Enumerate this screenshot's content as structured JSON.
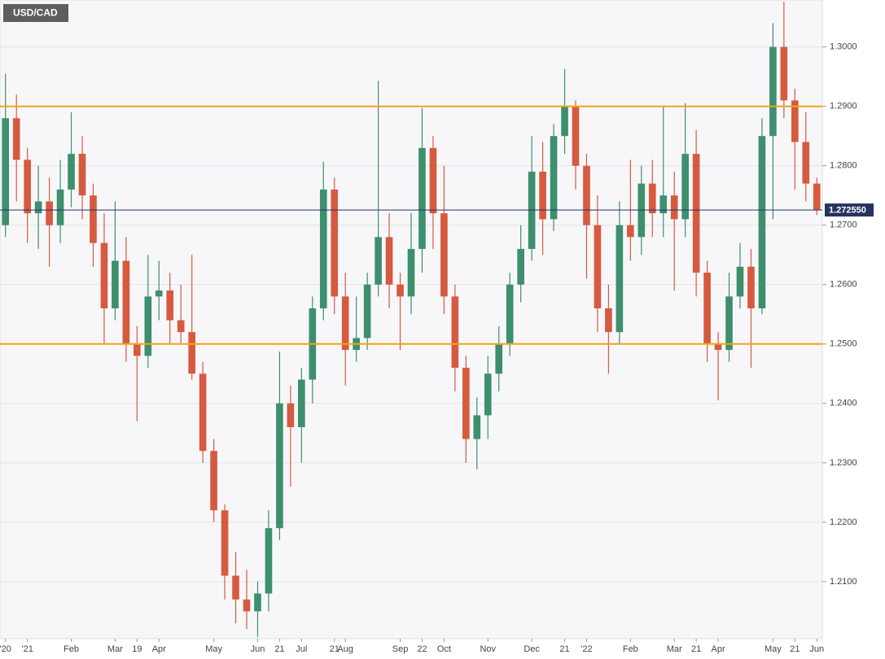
{
  "chart_data": {
    "type": "candlestick",
    "title": "USD/CAD",
    "categories": [
      "'20",
      null,
      "'21",
      null,
      null,
      null,
      "Feb",
      null,
      null,
      null,
      "Mar",
      null,
      "19",
      null,
      "Apr",
      null,
      null,
      null,
      null,
      "May",
      null,
      null,
      null,
      "Jun",
      null,
      "21",
      null,
      "Jul",
      null,
      null,
      "21",
      "Aug",
      null,
      null,
      null,
      null,
      "Sep",
      null,
      "22",
      null,
      "Oct",
      null,
      null,
      null,
      "Nov",
      null,
      null,
      null,
      "Dec",
      null,
      null,
      "21",
      null,
      "'22",
      null,
      null,
      null,
      "Feb",
      null,
      null,
      null,
      "Mar",
      null,
      "21",
      null,
      "Apr",
      null,
      null,
      null,
      null,
      "May",
      null,
      "21",
      null,
      "Jun"
    ],
    "open": [
      1.27,
      1.288,
      1.281,
      1.272,
      1.274,
      1.27,
      1.276,
      1.282,
      1.275,
      1.267,
      1.256,
      1.264,
      1.25,
      1.248,
      1.258,
      1.259,
      1.254,
      1.252,
      1.245,
      1.232,
      1.222,
      1.211,
      1.207,
      1.205,
      1.208,
      1.219,
      1.24,
      1.236,
      1.244,
      1.256,
      1.276,
      1.258,
      1.249,
      1.251,
      1.26,
      1.268,
      1.26,
      1.258,
      1.266,
      1.283,
      1.272,
      1.258,
      1.246,
      1.234,
      1.238,
      1.245,
      1.25,
      1.26,
      1.266,
      1.279,
      1.271,
      1.285,
      1.29,
      1.28,
      1.27,
      1.256,
      1.252,
      1.27,
      1.268,
      1.277,
      1.272,
      1.275,
      1.271,
      1.282,
      1.262,
      1.25,
      1.249,
      1.258,
      1.263,
      1.256,
      1.285,
      1.3,
      1.291,
      1.284,
      1.277
    ],
    "high": [
      1.2955,
      1.292,
      1.283,
      1.28,
      1.278,
      1.281,
      1.289,
      1.285,
      1.277,
      1.272,
      1.274,
      1.268,
      1.253,
      1.265,
      1.264,
      1.262,
      1.26,
      1.265,
      1.247,
      1.234,
      1.223,
      1.215,
      1.212,
      1.21,
      1.222,
      1.2487,
      1.243,
      1.246,
      1.258,
      1.2807,
      1.278,
      1.262,
      1.258,
      1.262,
      1.2943,
      1.272,
      1.262,
      1.272,
      1.2897,
      1.285,
      1.28,
      1.26,
      1.248,
      1.241,
      1.248,
      1.253,
      1.262,
      1.27,
      1.285,
      1.284,
      1.287,
      1.2963,
      1.291,
      1.282,
      1.275,
      1.26,
      1.274,
      1.281,
      1.28,
      1.281,
      1.29,
      1.279,
      1.2905,
      1.286,
      1.264,
      1.252,
      1.262,
      1.267,
      1.266,
      1.288,
      1.304,
      1.3076,
      1.293,
      1.289,
      1.278
    ],
    "low": [
      1.268,
      1.274,
      1.267,
      1.266,
      1.263,
      1.267,
      1.273,
      1.271,
      1.263,
      1.25,
      1.254,
      1.247,
      1.237,
      1.246,
      1.254,
      1.25,
      1.25,
      1.244,
      1.23,
      1.22,
      1.207,
      1.203,
      1.202,
      1.2007,
      1.205,
      1.217,
      1.226,
      1.23,
      1.24,
      1.254,
      1.255,
      1.243,
      1.247,
      1.249,
      1.258,
      1.256,
      1.249,
      1.255,
      1.262,
      1.266,
      1.255,
      1.242,
      1.23,
      1.2289,
      1.234,
      1.242,
      1.248,
      1.257,
      1.264,
      1.265,
      1.269,
      1.282,
      1.276,
      1.261,
      1.252,
      1.245,
      1.25,
      1.264,
      1.265,
      1.268,
      1.268,
      1.259,
      1.268,
      1.258,
      1.247,
      1.2405,
      1.247,
      1.256,
      1.246,
      1.255,
      1.271,
      1.288,
      1.276,
      1.274,
      1.2717
    ],
    "close": [
      1.288,
      1.281,
      1.272,
      1.274,
      1.27,
      1.276,
      1.282,
      1.275,
      1.267,
      1.256,
      1.264,
      1.25,
      1.248,
      1.258,
      1.259,
      1.254,
      1.252,
      1.245,
      1.232,
      1.222,
      1.211,
      1.207,
      1.205,
      1.208,
      1.219,
      1.24,
      1.236,
      1.244,
      1.256,
      1.276,
      1.258,
      1.249,
      1.251,
      1.26,
      1.268,
      1.26,
      1.258,
      1.266,
      1.283,
      1.272,
      1.258,
      1.246,
      1.234,
      1.238,
      1.245,
      1.25,
      1.26,
      1.266,
      1.279,
      1.271,
      1.285,
      1.29,
      1.28,
      1.27,
      1.256,
      1.252,
      1.27,
      1.268,
      1.277,
      1.272,
      1.275,
      1.271,
      1.282,
      1.262,
      1.25,
      1.249,
      1.258,
      1.263,
      1.256,
      1.285,
      1.3,
      1.291,
      1.284,
      1.277,
      1.27255
    ],
    "up_color": "#3d8f6e",
    "down_color": "#d65a3f",
    "ylim": [
      1.2004,
      1.3079
    ],
    "yticks": [
      {
        "value": 1.21,
        "label": "1.2100"
      },
      {
        "value": 1.22,
        "label": "1.2200"
      },
      {
        "value": 1.23,
        "label": "1.2300"
      },
      {
        "value": 1.24,
        "label": "1.2400"
      },
      {
        "value": 1.25,
        "label": "1.2500"
      },
      {
        "value": 1.26,
        "label": "1.2600"
      },
      {
        "value": 1.27,
        "label": "1.2700"
      },
      {
        "value": 1.28,
        "label": "1.2800"
      },
      {
        "value": 1.29,
        "label": "1.2900"
      },
      {
        "value": 1.3,
        "label": "1.3000"
      }
    ],
    "grid": true,
    "levels": [
      1.29,
      1.25
    ],
    "level_color": "#f5a313",
    "last_price": {
      "value": 1.27255,
      "label": "1.272550"
    },
    "last_price_color": "#25345e"
  }
}
